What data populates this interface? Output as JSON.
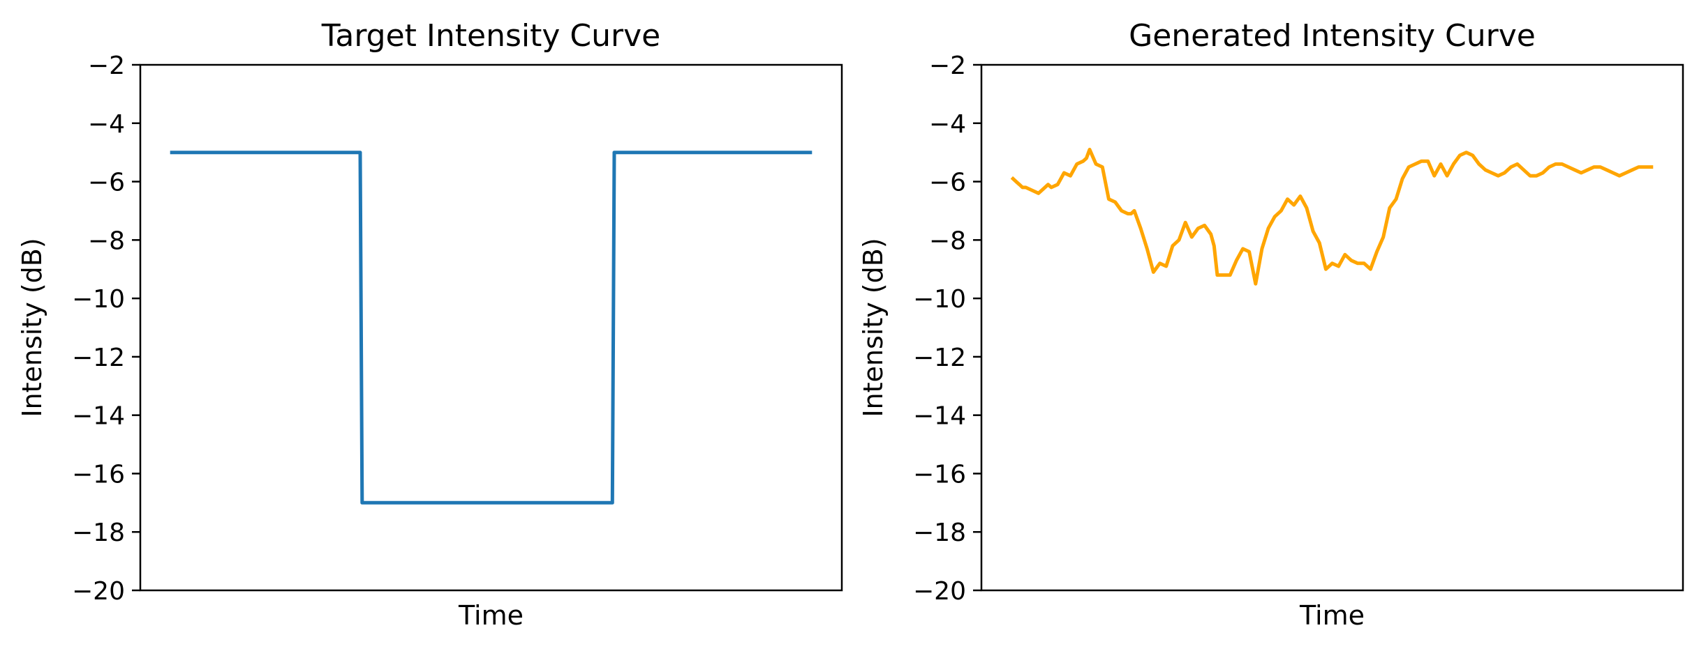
{
  "chart_data": [
    {
      "type": "line",
      "title": "Target Intensity Curve",
      "xlabel": "Time",
      "ylabel": "Intensity (dB)",
      "ylim": [
        -20,
        -2
      ],
      "yticks": [
        "−2",
        "−4",
        "−6",
        "−8",
        "−10",
        "−12",
        "−14",
        "−16",
        "−18",
        "−20"
      ],
      "x_ticks_shown": false,
      "grid": false,
      "color": "#1f77b4",
      "series": [
        {
          "x": [
            0,
            0.295,
            0.298,
            0.69,
            0.693,
            1.0
          ],
          "y": [
            -5,
            -5,
            -17,
            -17,
            -5,
            -5
          ]
        }
      ]
    },
    {
      "type": "line",
      "title": "Generated Intensity Curve",
      "xlabel": "Time",
      "ylabel": "Intensity (dB)",
      "ylim": [
        -20,
        -2
      ],
      "yticks": [
        "−2",
        "−4",
        "−6",
        "−8",
        "−10",
        "−12",
        "−14",
        "−16",
        "−18",
        "−20"
      ],
      "x_ticks_shown": false,
      "grid": false,
      "color": "#ffa500",
      "series": [
        {
          "x": [
            0,
            0.005,
            0.01,
            0.015,
            0.02,
            0.03,
            0.04,
            0.05,
            0.055,
            0.06,
            0.07,
            0.08,
            0.09,
            0.1,
            0.11,
            0.115,
            0.12,
            0.13,
            0.14,
            0.15,
            0.16,
            0.17,
            0.18,
            0.185,
            0.19,
            0.2,
            0.21,
            0.22,
            0.23,
            0.24,
            0.25,
            0.26,
            0.27,
            0.28,
            0.29,
            0.3,
            0.31,
            0.315,
            0.32,
            0.33,
            0.34,
            0.35,
            0.36,
            0.37,
            0.38,
            0.39,
            0.4,
            0.41,
            0.42,
            0.43,
            0.44,
            0.45,
            0.46,
            0.47,
            0.48,
            0.49,
            0.5,
            0.51,
            0.515,
            0.52,
            0.53,
            0.54,
            0.55,
            0.56,
            0.57,
            0.58,
            0.59,
            0.6,
            0.61,
            0.62,
            0.63,
            0.64,
            0.65,
            0.66,
            0.67,
            0.68,
            0.69,
            0.7,
            0.71,
            0.72,
            0.73,
            0.74,
            0.75,
            0.76,
            0.77,
            0.78,
            0.79,
            0.8,
            0.81,
            0.82,
            0.83,
            0.84,
            0.85,
            0.86,
            0.87,
            0.88,
            0.89,
            0.9,
            0.91,
            0.92,
            0.93,
            0.94,
            0.95,
            0.96,
            0.97,
            0.98,
            0.99,
            1.0
          ],
          "y": [
            -5.9,
            -6.0,
            -6.1,
            -6.2,
            -6.2,
            -6.3,
            -6.4,
            -6.2,
            -6.1,
            -6.2,
            -6.1,
            -5.7,
            -5.8,
            -5.4,
            -5.3,
            -5.2,
            -4.9,
            -5.4,
            -5.5,
            -6.6,
            -6.7,
            -7.0,
            -7.1,
            -7.1,
            -7.0,
            -7.6,
            -8.3,
            -9.1,
            -8.8,
            -8.9,
            -8.2,
            -8.0,
            -7.4,
            -7.9,
            -7.6,
            -7.5,
            -7.8,
            -8.2,
            -9.2,
            -9.2,
            -9.2,
            -8.7,
            -8.3,
            -8.4,
            -9.5,
            -8.3,
            -7.6,
            -7.2,
            -7.0,
            -6.6,
            -6.8,
            -6.5,
            -6.9,
            -7.7,
            -8.1,
            -9.0,
            -8.8,
            -8.9,
            -8.7,
            -8.5,
            -8.7,
            -8.8,
            -8.8,
            -9.0,
            -8.4,
            -7.9,
            -6.9,
            -6.6,
            -5.9,
            -5.5,
            -5.4,
            -5.3,
            -5.3,
            -5.8,
            -5.4,
            -5.8,
            -5.4,
            -5.1,
            -5.0,
            -5.1,
            -5.4,
            -5.6,
            -5.7,
            -5.8,
            -5.7,
            -5.5,
            -5.4,
            -5.6,
            -5.8,
            -5.8,
            -5.7,
            -5.5,
            -5.4,
            -5.4,
            -5.5,
            -5.6,
            -5.7,
            -5.6,
            -5.5,
            -5.5,
            -5.6,
            -5.7,
            -5.8,
            -5.7,
            -5.6,
            -5.5,
            -5.5,
            -5.5
          ]
        }
      ]
    }
  ]
}
